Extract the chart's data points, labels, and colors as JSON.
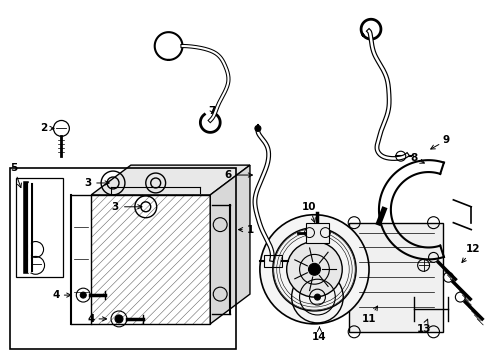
{
  "background_color": "#ffffff",
  "line_color": "#000000",
  "label_color": "#000000",
  "fig_w": 4.9,
  "fig_h": 3.6,
  "dpi": 100
}
